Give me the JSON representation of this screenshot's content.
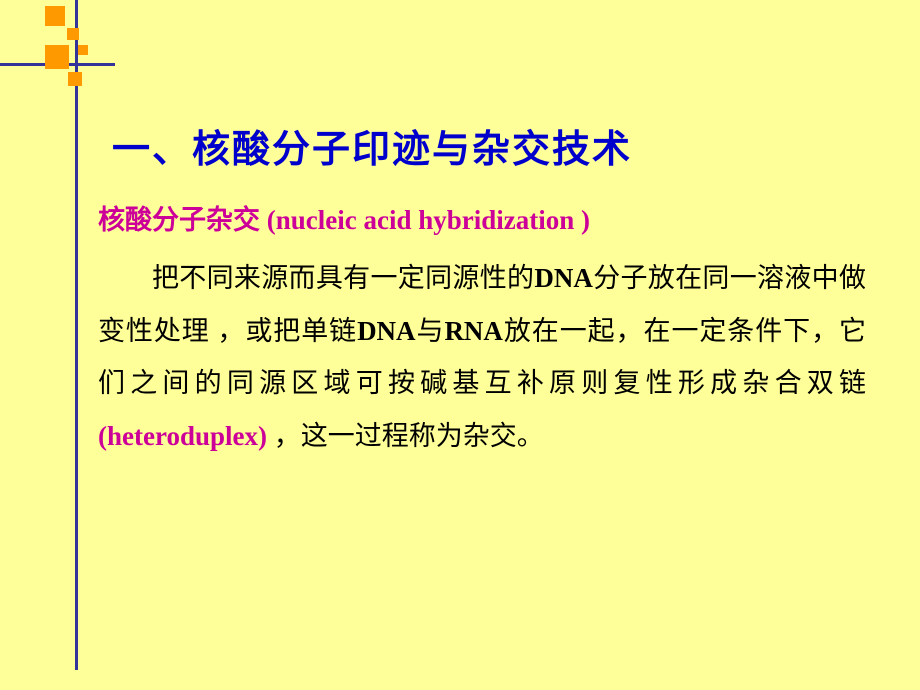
{
  "title": {
    "text": "一、核酸分子印迹与杂交技术",
    "fontsize": 38,
    "color": "#0000cc"
  },
  "subtitle": {
    "zh": "核酸分子杂交 ",
    "en": "(nucleic acid hybridization )",
    "fontsize": 27,
    "color": "#cc0099"
  },
  "body": {
    "p1a": "把不同来源而具有一定同源性的",
    "p1b": "DNA",
    "p1c": "分子放在同一溶液中做变性处理 ，或把单链",
    "p1d": "DNA",
    "p1e": "与",
    "p1f": "RNA",
    "p1g": "放在一起，在一定条件下，它们之间的同源区域可按碱基互补原则复性形成杂合双链",
    "p1h": "(heteroduplex) ",
    "p1i": "，这一过程称为杂交。",
    "fontsize": 27,
    "line_height": 1.95,
    "color": "#000000"
  },
  "decor": {
    "line_color": "#333399",
    "square_color": "#ff9900",
    "background_color": "#ffff99"
  }
}
